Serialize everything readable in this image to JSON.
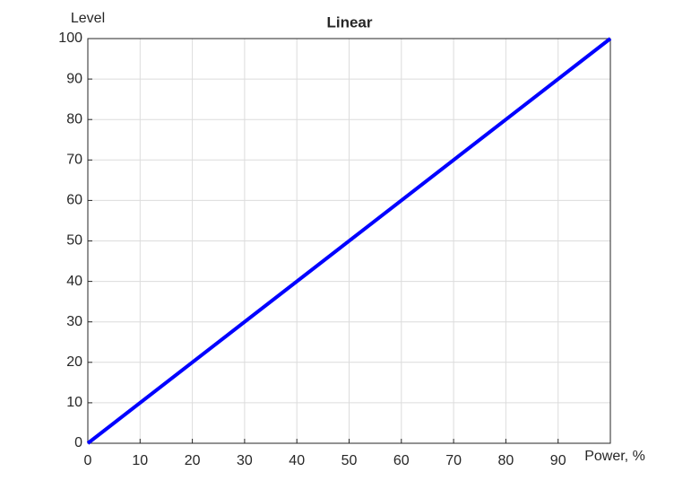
{
  "chart_data": {
    "type": "line",
    "title": "Linear",
    "xlabel": "Power, %",
    "ylabel": "Level",
    "x": [
      0,
      100
    ],
    "series": [
      {
        "name": "Linear",
        "color": "#0000ff",
        "values": [
          0,
          100
        ]
      }
    ],
    "xlim": [
      0,
      100
    ],
    "xticks": [
      0,
      10,
      20,
      30,
      40,
      50,
      60,
      70,
      80,
      90
    ],
    "ylim": [
      0,
      100
    ],
    "yticks": [
      0,
      10,
      20,
      30,
      40,
      50,
      60,
      70,
      80,
      90,
      100
    ],
    "grid": true
  }
}
